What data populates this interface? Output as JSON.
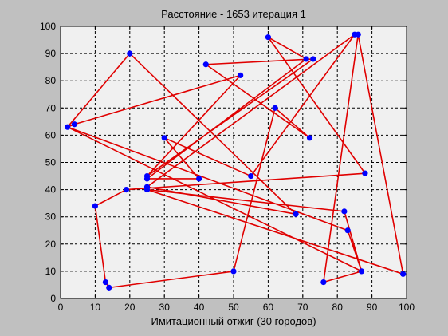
{
  "chart_data": {
    "type": "line",
    "title": "Расстояние - 1653 итерация 1",
    "xlabel": "Имитационный отжиг (30 городов)",
    "ylabel": "",
    "xlim": [
      0,
      100
    ],
    "ylim": [
      0,
      100
    ],
    "xticks": [
      0,
      10,
      20,
      30,
      40,
      50,
      60,
      70,
      80,
      90,
      100
    ],
    "yticks": [
      0,
      10,
      20,
      30,
      40,
      50,
      60,
      70,
      80,
      90,
      100
    ],
    "grid": true,
    "series": [
      {
        "line_color": "#e00000",
        "marker_color": "#0000ff",
        "x": [
          2,
          4,
          52,
          25,
          73,
          42,
          72,
          62,
          50,
          14,
          13,
          10,
          19,
          88,
          60,
          71,
          25,
          40,
          30,
          55,
          85,
          25,
          68,
          20,
          2,
          87,
          82,
          25,
          99,
          86,
          76,
          87,
          83,
          2
        ],
        "y": [
          63,
          64,
          82,
          45,
          88,
          86,
          59,
          70,
          10,
          4,
          6,
          34,
          40,
          46,
          96,
          88,
          44,
          44,
          59,
          45,
          97,
          41,
          31,
          90,
          63,
          10,
          32,
          40,
          9,
          97,
          6,
          10,
          25,
          63
        ]
      }
    ]
  },
  "colors": {
    "figure_bg": "#c0c0c0",
    "axes_bg": "#f0f0f0",
    "line": "#e00000",
    "marker": "#0000ff",
    "grid": "#000000"
  }
}
